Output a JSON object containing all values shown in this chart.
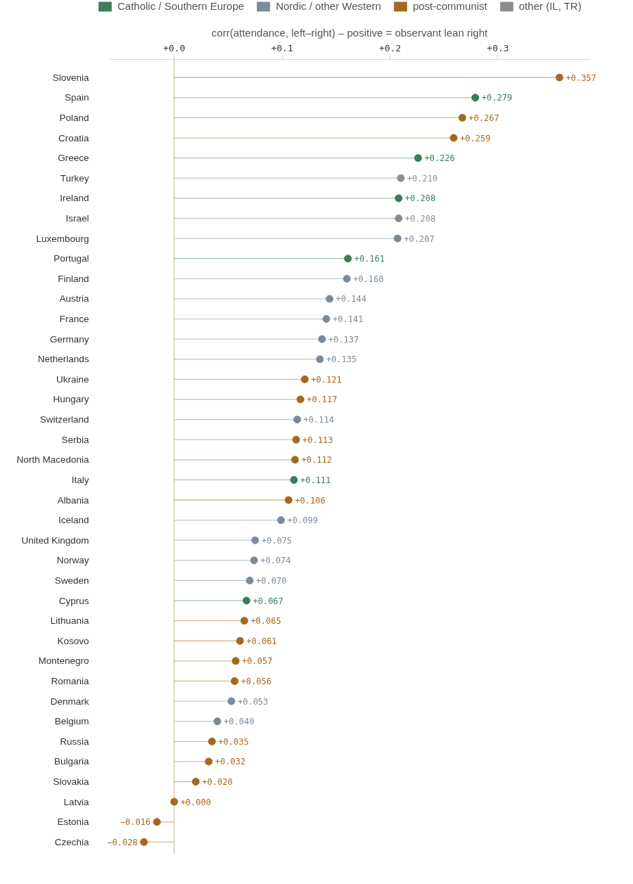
{
  "chart_data": {
    "type": "lollipop",
    "orientation": "horizontal",
    "xlabel": "corr(attendance, left–right) – positive = observant lean right",
    "categories": [
      "Slovenia",
      "Spain",
      "Poland",
      "Croatia",
      "Greece",
      "Turkey",
      "Ireland",
      "Israel",
      "Luxembourg",
      "Portugal",
      "Finland",
      "Austria",
      "France",
      "Germany",
      "Netherlands",
      "Ukraine",
      "Hungary",
      "Switzerland",
      "Serbia",
      "North Macedonia",
      "Italy",
      "Albania",
      "Iceland",
      "United Kingdom",
      "Norway",
      "Sweden",
      "Cyprus",
      "Lithuania",
      "Kosovo",
      "Montenegro",
      "Romania",
      "Denmark",
      "Belgium",
      "Russia",
      "Bulgaria",
      "Slovakia",
      "Latvia",
      "Estonia",
      "Czechia"
    ],
    "series": [
      {
        "name": "Catholic / Southern Europe",
        "color": "#3a7d57",
        "values": [
          null,
          0.279,
          null,
          null,
          0.226,
          null,
          0.208,
          null,
          null,
          0.161,
          null,
          null,
          null,
          null,
          null,
          null,
          null,
          null,
          null,
          null,
          0.111,
          null,
          null,
          null,
          null,
          null,
          0.067,
          null,
          null,
          null,
          null,
          null,
          null,
          null,
          null,
          null,
          null,
          null,
          null
        ],
        "value_labels": [
          null,
          "+0.279",
          null,
          null,
          "+0.226",
          null,
          "+0.208",
          null,
          null,
          "+0.161",
          null,
          null,
          null,
          null,
          null,
          null,
          null,
          null,
          null,
          null,
          "+0.111",
          null,
          null,
          null,
          null,
          null,
          "+0.067",
          null,
          null,
          null,
          null,
          null,
          null,
          null,
          null,
          null,
          null,
          null,
          null
        ]
      },
      {
        "name": "Nordic / other Western",
        "color": "#7b8a9b",
        "values": [
          null,
          null,
          null,
          null,
          null,
          null,
          null,
          null,
          0.207,
          null,
          0.16,
          0.144,
          0.141,
          0.137,
          0.135,
          null,
          null,
          0.114,
          null,
          null,
          null,
          null,
          0.099,
          0.075,
          0.074,
          0.07,
          null,
          null,
          null,
          null,
          null,
          0.053,
          0.04,
          null,
          null,
          null,
          null,
          null,
          null
        ],
        "value_labels": [
          null,
          null,
          null,
          null,
          null,
          null,
          null,
          null,
          "+0.207",
          null,
          "+0.160",
          "+0.144",
          "+0.141",
          "+0.137",
          "+0.135",
          null,
          null,
          "+0.114",
          null,
          null,
          null,
          null,
          "+0.099",
          "+0.075",
          "+0.074",
          "+0.070",
          null,
          null,
          null,
          null,
          null,
          "+0.053",
          "+0.040",
          null,
          null,
          null,
          null,
          null,
          null
        ]
      },
      {
        "name": "post-communist",
        "color": "#a5681f",
        "values": [
          0.357,
          null,
          0.267,
          0.259,
          null,
          null,
          null,
          null,
          null,
          null,
          null,
          null,
          null,
          null,
          null,
          0.121,
          0.117,
          null,
          0.113,
          0.112,
          null,
          0.106,
          null,
          null,
          null,
          null,
          null,
          0.065,
          0.061,
          0.057,
          0.056,
          null,
          null,
          0.035,
          0.032,
          0.02,
          0.0,
          -0.016,
          -0.028
        ],
        "value_labels": [
          "+0.357",
          null,
          "+0.267",
          "+0.259",
          null,
          null,
          null,
          null,
          null,
          null,
          null,
          null,
          null,
          null,
          null,
          "+0.121",
          "+0.117",
          null,
          "+0.113",
          "+0.112",
          null,
          "+0.106",
          null,
          null,
          null,
          null,
          null,
          "+0.065",
          "+0.061",
          "+0.057",
          "+0.056",
          null,
          null,
          "+0.035",
          "+0.032",
          "+0.020",
          "+0.000",
          "−0.016",
          "−0.028"
        ]
      },
      {
        "name": "other (IL, TR)",
        "color": "#8c8c8c",
        "values": [
          null,
          null,
          null,
          null,
          null,
          0.21,
          null,
          0.208,
          null,
          null,
          null,
          null,
          null,
          null,
          null,
          null,
          null,
          null,
          null,
          null,
          null,
          null,
          null,
          null,
          null,
          null,
          null,
          null,
          null,
          null,
          null,
          null,
          null,
          null,
          null,
          null,
          null,
          null,
          null
        ],
        "value_labels": [
          null,
          null,
          null,
          null,
          null,
          "+0.210",
          null,
          "+0.208",
          null,
          null,
          null,
          null,
          null,
          null,
          null,
          null,
          null,
          null,
          null,
          null,
          null,
          null,
          null,
          null,
          null,
          null,
          null,
          null,
          null,
          null,
          null,
          null,
          null,
          null,
          null,
          null,
          null,
          null,
          null
        ]
      }
    ],
    "xlim": [
      -0.06,
      0.385
    ],
    "xticks": [
      {
        "value": 0.0,
        "label": "+0.0"
      },
      {
        "value": 0.1,
        "label": "+0.1"
      },
      {
        "value": 0.2,
        "label": "+0.2"
      },
      {
        "value": 0.3,
        "label": "+0.3"
      }
    ],
    "ref_lines": [
      {
        "axis": "x",
        "value": 0,
        "color": "#d9cfb6"
      }
    ],
    "grid": false,
    "legend": "top",
    "marker": "circle"
  }
}
